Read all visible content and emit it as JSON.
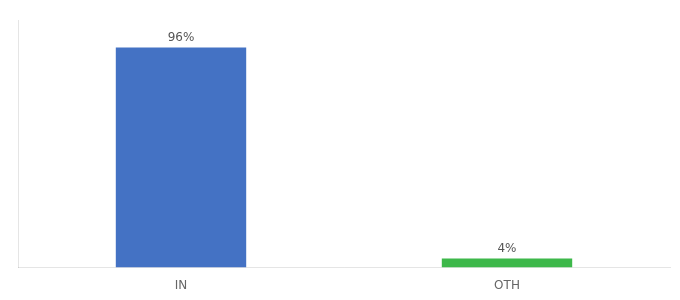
{
  "chart_data": {
    "type": "bar",
    "categories": [
      "IN",
      "OTH"
    ],
    "values": [
      96,
      4
    ],
    "value_labels": [
      "96%",
      "4%"
    ],
    "colors": [
      "#4472c4",
      "#3db84a"
    ],
    "ylim": [
      0,
      108
    ],
    "yticks": [],
    "grid": false,
    "data_labels": true,
    "tick_labels": "x"
  }
}
